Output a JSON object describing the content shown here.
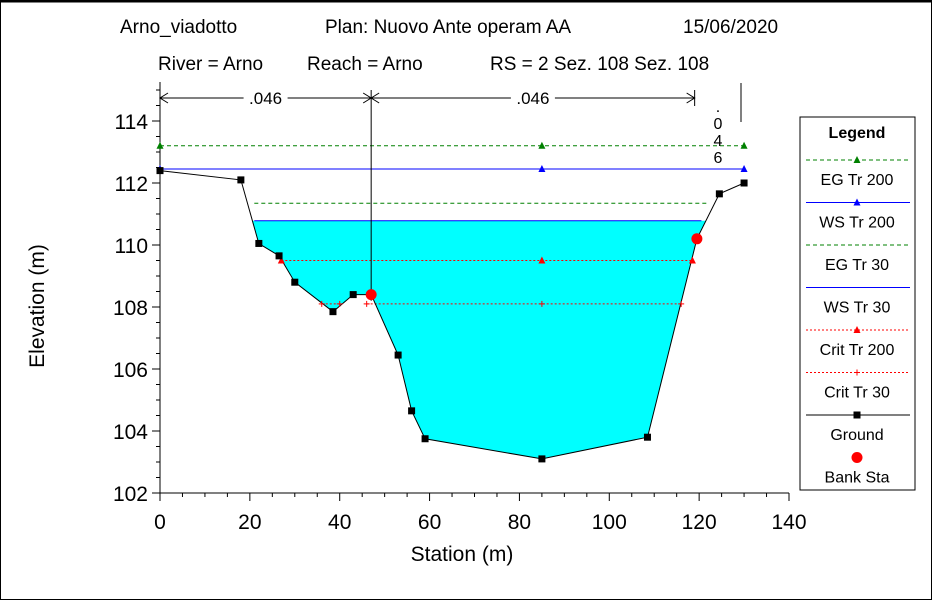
{
  "header": {
    "project": "Arno_viadotto",
    "plan": "Plan: Nuovo Ante operam AA",
    "date": "15/06/2020",
    "river": "River = Arno",
    "reach": "Reach = Arno",
    "rs": "RS = 2  Sez. 108  Sez. 108"
  },
  "chart_data": {
    "type": "line",
    "xlabel": "Station (m)",
    "ylabel": "Elevation (m)",
    "xlim": [
      0,
      140
    ],
    "ylim": [
      102,
      115
    ],
    "x_ticks": [
      "0",
      "20",
      "40",
      "60",
      "80",
      "100",
      "120",
      "140"
    ],
    "y_ticks": [
      "102",
      "104",
      "106",
      "108",
      "110",
      "112",
      "114"
    ],
    "manning": [
      {
        "label": ".046",
        "from": 0,
        "to": 47
      },
      {
        "label": ".046",
        "from": 47,
        "to": 119
      }
    ],
    "vertical_label": [
      ".",
      "0",
      "4",
      "6"
    ],
    "series": [
      {
        "name": "EG Tr 200",
        "color": "#008000",
        "style": "dashed",
        "marker": "triangle",
        "x": [
          0,
          130
        ],
        "y": [
          113.2,
          113.2
        ],
        "marker_x": [
          0,
          85,
          130
        ]
      },
      {
        "name": "WS Tr 200",
        "color": "#0000ff",
        "style": "solid",
        "marker": "triangle",
        "x": [
          0,
          130
        ],
        "y": [
          112.45,
          112.45
        ],
        "marker_x": [
          0,
          85,
          130
        ]
      },
      {
        "name": "EG Tr 30",
        "color": "#008000",
        "style": "dashed",
        "marker": "none",
        "x": [
          21,
          122
        ],
        "y": [
          111.35,
          111.35
        ],
        "marker_x": []
      },
      {
        "name": "WS Tr 30",
        "color": "#0000ff",
        "style": "solid",
        "marker": "none",
        "x": [
          21,
          120.5
        ],
        "y": [
          110.78,
          110.78
        ],
        "marker_x": []
      },
      {
        "name": "Crit Tr 200",
        "color": "#ff0000",
        "style": "dotted",
        "marker": "triangle",
        "x": [
          27,
          118.5
        ],
        "y": [
          109.5,
          109.5
        ],
        "marker_x": [
          27,
          85,
          118.5
        ]
      },
      {
        "name": "Crit Tr 30",
        "color": "#ff0000",
        "style": "dotted",
        "marker": "plus",
        "x": [
          36,
          46,
          116
        ],
        "y": [
          108.1,
          108.1,
          108.1
        ],
        "marker_x": [
          36,
          40,
          46,
          85,
          116
        ],
        "segments": [
          [
            36,
            40
          ],
          [
            46,
            116
          ]
        ]
      },
      {
        "name": "Ground",
        "color": "#000000",
        "style": "solid",
        "marker": "square",
        "x": [
          0,
          18,
          22,
          26.5,
          30,
          38.5,
          43,
          47,
          53,
          56,
          59,
          85,
          108.5,
          119.5,
          124.5,
          130
        ],
        "y": [
          112.4,
          112.1,
          110.05,
          109.65,
          108.8,
          107.85,
          108.4,
          108.4,
          106.45,
          104.65,
          103.75,
          103.1,
          103.8,
          110.2,
          111.65,
          112.0
        ]
      }
    ],
    "bank_stations": {
      "name": "Bank Sta",
      "color": "#ff0000",
      "x": [
        47,
        119.5
      ],
      "y": [
        108.4,
        110.2
      ]
    },
    "water_fill": {
      "color": "#00ffff",
      "ws_elevation": 110.78
    }
  },
  "legend": {
    "title": "Legend",
    "items": [
      {
        "label": "EG Tr 200",
        "color": "#008000",
        "style": "dashed",
        "marker": "triangle"
      },
      {
        "label": "WS Tr 200",
        "color": "#0000ff",
        "style": "solid",
        "marker": "triangle"
      },
      {
        "label": "EG Tr 30",
        "color": "#008000",
        "style": "dashed",
        "marker": "none"
      },
      {
        "label": "WS Tr 30",
        "color": "#0000ff",
        "style": "solid",
        "marker": "none"
      },
      {
        "label": "Crit Tr 200",
        "color": "#ff0000",
        "style": "dotted",
        "marker": "triangle"
      },
      {
        "label": "Crit Tr 30",
        "color": "#ff0000",
        "style": "dotted",
        "marker": "plus"
      },
      {
        "label": "Ground",
        "color": "#000000",
        "style": "solid",
        "marker": "square"
      },
      {
        "label": "Bank Sta",
        "color": "#ff0000",
        "style": "none",
        "marker": "circle"
      }
    ]
  }
}
